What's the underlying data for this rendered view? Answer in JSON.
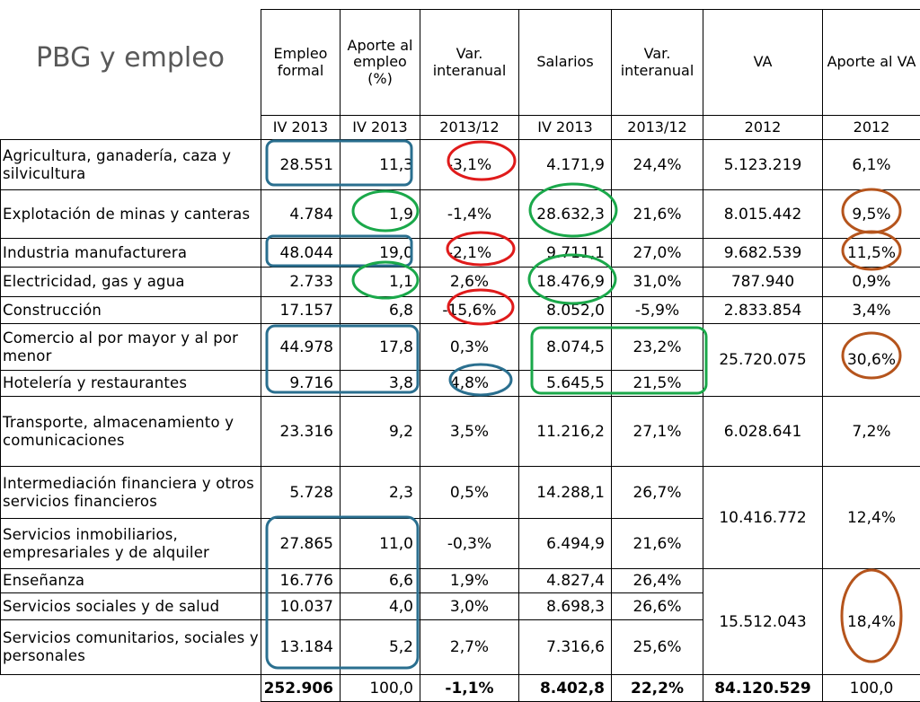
{
  "title": "PBG y empleo",
  "headers": {
    "empleo": "Empleo formal",
    "aporte_empleo": "Aporte al empleo (%)",
    "var1": "Var. interanual",
    "salarios": "Salarios",
    "var2": "Var. interanual",
    "va": "VA",
    "aporte_va": "Aporte al VA"
  },
  "periods": [
    "IV 2013",
    "IV 2013",
    "2013/12",
    "IV 2013",
    "2013/12",
    "2012",
    "2012"
  ],
  "rows": [
    {
      "name": "Agricultura, ganadería, caza y silvicultura",
      "empleo": "28.551",
      "aporte": "11,3",
      "var1": "-3,1%",
      "salarios": "4.171,9",
      "var2": "24,4%",
      "va": "5.123.219",
      "aporte_va": "6,1%"
    },
    {
      "name": "Explotación de minas y canteras",
      "empleo": "4.784",
      "aporte": "1,9",
      "var1": "-1,4%",
      "salarios": "28.632,3",
      "var2": "21,6%",
      "va": "8.015.442",
      "aporte_va": "9,5%"
    },
    {
      "name": "Industria manufacturera",
      "empleo": "48.044",
      "aporte": "19,0",
      "var1": "-2,1%",
      "salarios": "9.711,1",
      "var2": "27,0%",
      "va": "9.682.539",
      "aporte_va": "11,5%"
    },
    {
      "name": "Electricidad, gas y agua",
      "empleo": "2.733",
      "aporte": "1,1",
      "var1": "2,6%",
      "salarios": "18.476,9",
      "var2": "31,0%",
      "va": "787.940",
      "aporte_va": "0,9%"
    },
    {
      "name": "Construcción",
      "empleo": "17.157",
      "aporte": "6,8",
      "var1": "-15,6%",
      "salarios": "8.052,0",
      "var2": "-5,9%",
      "va": "2.833.854",
      "aporte_va": "3,4%"
    },
    {
      "name": "Comercio al por mayor y al por menor",
      "empleo": "44.978",
      "aporte": "17,8",
      "var1": "0,3%",
      "salarios": "8.074,5",
      "var2": "23,2%",
      "va": "25.720.075",
      "aporte_va": "30,6%"
    },
    {
      "name": "Hotelería y restaurantes",
      "empleo": "9.716",
      "aporte": "3,8",
      "var1": "4,8%",
      "salarios": "5.645,5",
      "var2": "21,5%"
    },
    {
      "name": "Transporte, almacenamiento y comunicaciones",
      "empleo": "23.316",
      "aporte": "9,2",
      "var1": "3,5%",
      "salarios": "11.216,2",
      "var2": "27,1%",
      "va": "6.028.641",
      "aporte_va": "7,2%"
    },
    {
      "name": "Intermediación financiera y otros servicios financieros",
      "empleo": "5.728",
      "aporte": "2,3",
      "var1": "0,5%",
      "salarios": "14.288,1",
      "var2": "26,7%",
      "va": "10.416.772",
      "aporte_va": "12,4%"
    },
    {
      "name": "Servicios inmobiliarios, empresariales y de alquiler",
      "empleo": "27.865",
      "aporte": "11,0",
      "var1": "-0,3%",
      "salarios": "6.494,9",
      "var2": "21,6%"
    },
    {
      "name": "Enseñanza",
      "empleo": "16.776",
      "aporte": "6,6",
      "var1": "1,9%",
      "salarios": "4.827,4",
      "var2": "26,4%",
      "va": "15.512.043",
      "aporte_va": "18,4%"
    },
    {
      "name": "Servicios sociales y de salud",
      "empleo": "10.037",
      "aporte": "4,0",
      "var1": "3,0%",
      "salarios": "8.698,3",
      "var2": "26,6%"
    },
    {
      "name": "Servicios comunitarios, sociales y personales",
      "empleo": "13.184",
      "aporte": "5,2",
      "var1": "2,7%",
      "salarios": "7.316,6",
      "var2": "25,6%"
    }
  ],
  "total": {
    "empleo": "252.906",
    "aporte": "100,0",
    "var1": "-1,1%",
    "salarios": "8.402,8",
    "var2": "22,2%",
    "va": "84.120.529",
    "aporte_va": "100,0"
  },
  "highlight_colors": {
    "blue": "#2a6f8f",
    "green": "#1aa84a",
    "red": "#e01b1b",
    "orange": "#b5541c"
  }
}
